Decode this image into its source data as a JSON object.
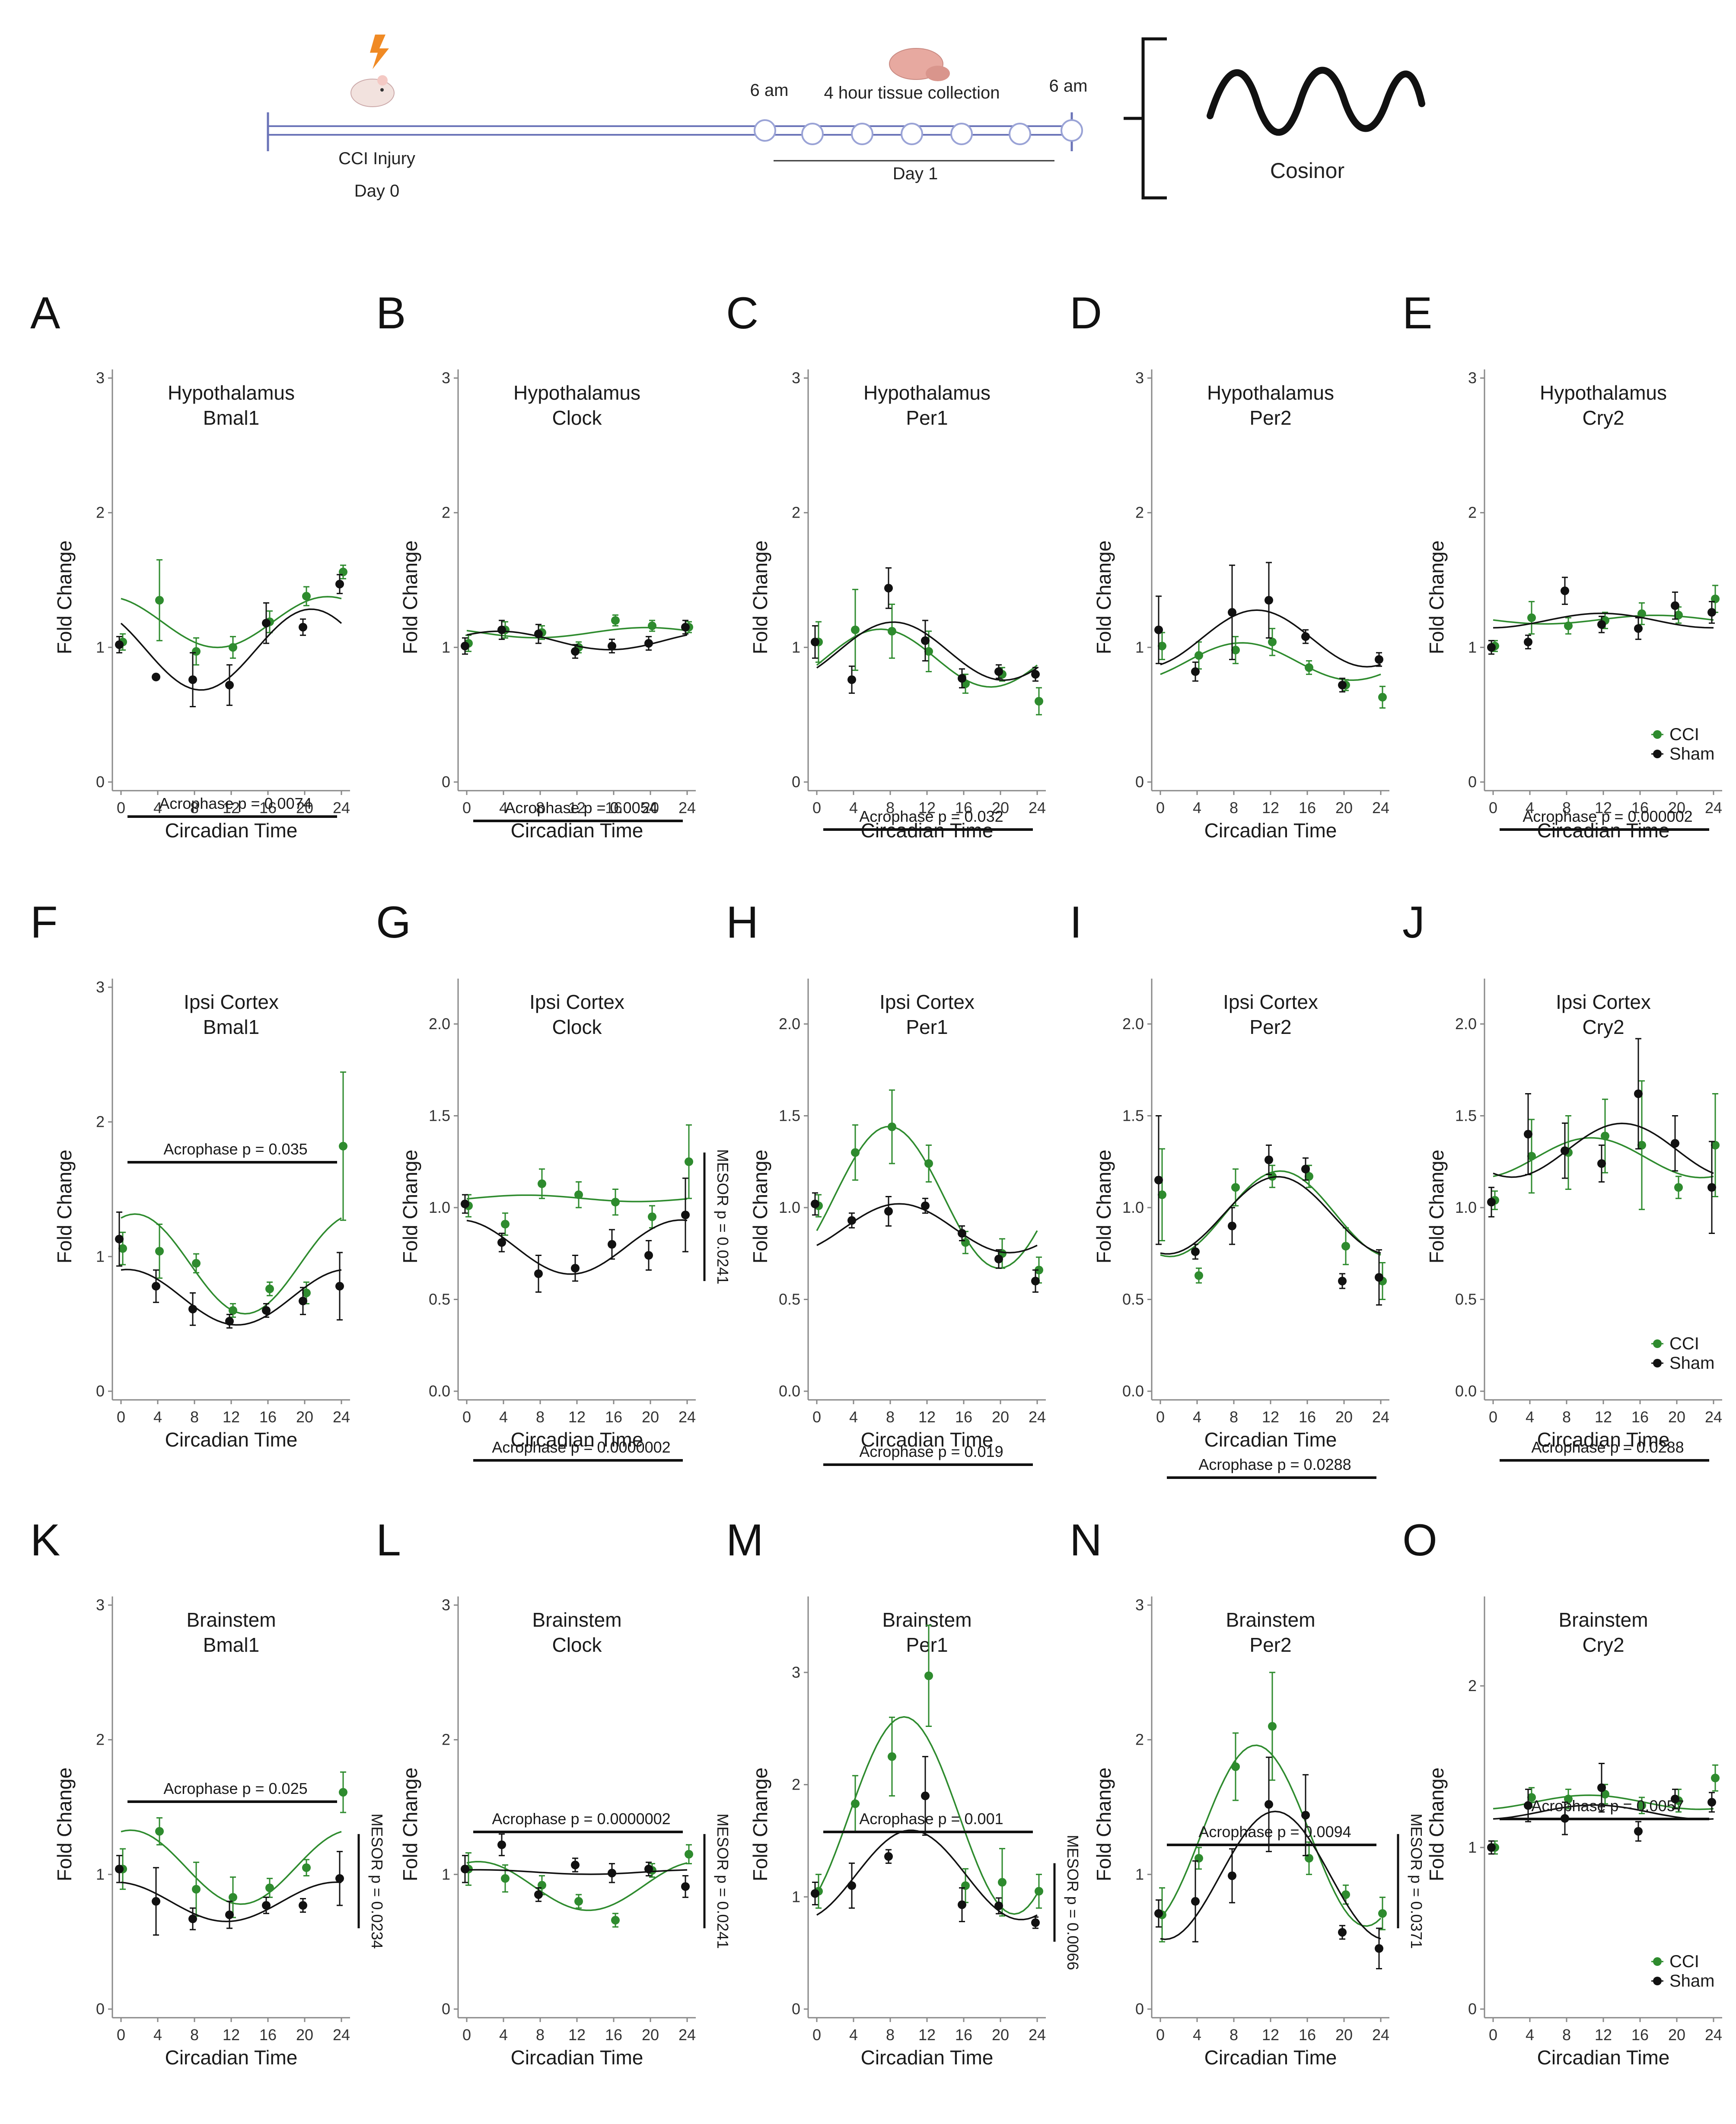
{
  "timeline": {
    "injury_label": "CCI Injury",
    "day0_label": "Day 0",
    "start_time": "6 am",
    "end_time": "6 am",
    "collection_label": "4 hour tissue collection",
    "day1_label": "Day 1",
    "cosinor_label": "Cosinor"
  },
  "colors": {
    "cci": "#2e8b2e",
    "sham": "#111111"
  },
  "axis": {
    "xlabel": "Circadian Time",
    "ylabel": "Fold Change",
    "x_ticks": [
      "0",
      "4",
      "8",
      "12",
      "16",
      "20",
      "24"
    ]
  },
  "legend": {
    "cci": "CCI",
    "sham": "Sham"
  },
  "chart_data": [
    {
      "letter": "A",
      "type": "scatter",
      "title_line1": "Hypothalamus",
      "title_line2": "Bmal1",
      "ylim": [
        0,
        3
      ],
      "y_ticks": [
        "0",
        "1",
        "2",
        "3"
      ],
      "x": [
        0,
        4,
        8,
        12,
        16,
        20,
        24
      ],
      "series": [
        {
          "name": "CCI",
          "values": [
            1.04,
            1.35,
            0.97,
            1.0,
            1.19,
            1.38,
            1.56
          ],
          "errors": [
            0.06,
            0.3,
            0.1,
            0.08,
            0.08,
            0.07,
            0.05
          ]
        },
        {
          "name": "Sham",
          "values": [
            1.02,
            0.78,
            0.76,
            0.72,
            1.18,
            1.15,
            1.47
          ],
          "errors": [
            0.06,
            0.0,
            0.2,
            0.15,
            0.15,
            0.06,
            0.07
          ]
        }
      ],
      "acrophase": "Acrophase p = 0.0074",
      "mesor": ""
    },
    {
      "letter": "B",
      "type": "scatter",
      "title_line1": "Hypothalamus",
      "title_line2": "Clock",
      "ylim": [
        0,
        3
      ],
      "y_ticks": [
        "0",
        "1",
        "2",
        "3"
      ],
      "x": [
        0,
        4,
        8,
        12,
        16,
        20,
        24
      ],
      "series": [
        {
          "name": "CCI",
          "values": [
            1.03,
            1.13,
            1.11,
            1.0,
            1.2,
            1.16,
            1.15
          ],
          "errors": [
            0.06,
            0.06,
            0.05,
            0.04,
            0.04,
            0.04,
            0.04
          ]
        },
        {
          "name": "Sham",
          "values": [
            1.01,
            1.13,
            1.1,
            0.97,
            1.01,
            1.03,
            1.15
          ],
          "errors": [
            0.06,
            0.07,
            0.07,
            0.05,
            0.05,
            0.05,
            0.05
          ]
        }
      ],
      "acrophase": "Acrophase p = 0.0054",
      "mesor": ""
    },
    {
      "letter": "C",
      "type": "scatter",
      "title_line1": "Hypothalamus",
      "title_line2": "Per1",
      "ylim": [
        0,
        3
      ],
      "y_ticks": [
        "0",
        "1",
        "2",
        "3"
      ],
      "x": [
        0,
        4,
        8,
        12,
        16,
        20,
        24
      ],
      "series": [
        {
          "name": "CCI",
          "values": [
            1.04,
            1.13,
            1.12,
            0.97,
            0.73,
            0.8,
            0.6
          ],
          "errors": [
            0.15,
            0.3,
            0.2,
            0.15,
            0.07,
            0.05,
            0.1
          ]
        },
        {
          "name": "Sham",
          "values": [
            1.04,
            0.76,
            1.44,
            1.05,
            0.77,
            0.82,
            0.8
          ],
          "errors": [
            0.12,
            0.1,
            0.15,
            0.15,
            0.07,
            0.05,
            0.05
          ]
        }
      ],
      "acrophase": "Acrophase p = 0.032",
      "mesor": ""
    },
    {
      "letter": "D",
      "type": "scatter",
      "title_line1": "Hypothalamus",
      "title_line2": "Per2",
      "ylim": [
        0,
        3
      ],
      "y_ticks": [
        "0",
        "1",
        "2",
        "3"
      ],
      "x": [
        0,
        4,
        8,
        12,
        16,
        20,
        24
      ],
      "series": [
        {
          "name": "CCI",
          "values": [
            1.01,
            0.94,
            0.98,
            1.04,
            0.85,
            0.72,
            0.63
          ],
          "errors": [
            0.1,
            0.1,
            0.1,
            0.1,
            0.05,
            0.04,
            0.08
          ]
        },
        {
          "name": "Sham",
          "values": [
            1.13,
            0.82,
            1.26,
            1.35,
            1.08,
            0.72,
            0.91
          ],
          "errors": [
            0.25,
            0.07,
            0.35,
            0.28,
            0.05,
            0.05,
            0.05
          ]
        }
      ],
      "acrophase": "",
      "mesor": ""
    },
    {
      "letter": "E",
      "type": "scatter",
      "title_line1": "Hypothalamus",
      "title_line2": "Cry2",
      "ylim": [
        0,
        3
      ],
      "y_ticks": [
        "0",
        "1",
        "2",
        "3"
      ],
      "x": [
        0,
        4,
        8,
        12,
        16,
        20,
        24
      ],
      "series": [
        {
          "name": "CCI",
          "values": [
            1.01,
            1.22,
            1.16,
            1.2,
            1.25,
            1.24,
            1.36
          ],
          "errors": [
            0.04,
            0.12,
            0.06,
            0.06,
            0.08,
            0.06,
            0.1
          ]
        },
        {
          "name": "Sham",
          "values": [
            1.0,
            1.04,
            1.42,
            1.17,
            1.14,
            1.31,
            1.26
          ],
          "errors": [
            0.05,
            0.05,
            0.1,
            0.06,
            0.08,
            0.1,
            0.08
          ]
        }
      ],
      "acrophase": "Acrophase p = 0.000002",
      "mesor": ""
    },
    {
      "letter": "F",
      "type": "scatter",
      "title_line1": "Ipsi Cortex",
      "title_line2": "Bmal1",
      "ylim": [
        0,
        3
      ],
      "y_ticks": [
        "0",
        "1",
        "2",
        "3"
      ],
      "x": [
        0,
        4,
        8,
        12,
        16,
        20,
        24
      ],
      "series": [
        {
          "name": "CCI",
          "values": [
            1.06,
            1.04,
            0.95,
            0.6,
            0.76,
            0.73,
            1.82
          ],
          "errors": [
            0.12,
            0.2,
            0.07,
            0.05,
            0.05,
            0.08,
            0.55
          ]
        },
        {
          "name": "Sham",
          "values": [
            1.13,
            0.78,
            0.61,
            0.52,
            0.6,
            0.67,
            0.78
          ],
          "errors": [
            0.2,
            0.12,
            0.12,
            0.05,
            0.05,
            0.1,
            0.25
          ]
        }
      ],
      "acrophase": "Acrophase p = 0.035",
      "mesor": ""
    },
    {
      "letter": "G",
      "type": "scatter",
      "title_line1": "Ipsi Cortex",
      "title_line2": "Clock",
      "ylim": [
        0,
        2.2
      ],
      "y_ticks": [
        "0.0",
        "0.5",
        "1.0",
        "1.5",
        "2.0"
      ],
      "x": [
        0,
        4,
        8,
        12,
        16,
        20,
        24
      ],
      "series": [
        {
          "name": "CCI",
          "values": [
            1.01,
            0.91,
            1.13,
            1.07,
            1.03,
            0.95,
            1.25
          ],
          "errors": [
            0.06,
            0.06,
            0.08,
            0.07,
            0.07,
            0.06,
            0.2
          ]
        },
        {
          "name": "Sham",
          "values": [
            1.02,
            0.81,
            0.64,
            0.67,
            0.8,
            0.74,
            0.96
          ],
          "errors": [
            0.05,
            0.05,
            0.1,
            0.07,
            0.08,
            0.08,
            0.2
          ]
        }
      ],
      "acrophase": "Acrophase p = 0.0000002",
      "mesor": "MESOR p = 0.0241"
    },
    {
      "letter": "H",
      "type": "scatter",
      "title_line1": "Ipsi Cortex",
      "title_line2": "Per1",
      "ylim": [
        0,
        2.2
      ],
      "y_ticks": [
        "0.0",
        "0.5",
        "1.0",
        "1.5",
        "2.0"
      ],
      "x": [
        0,
        4,
        8,
        12,
        16,
        20,
        24
      ],
      "series": [
        {
          "name": "CCI",
          "values": [
            1.01,
            1.3,
            1.44,
            1.24,
            0.81,
            0.75,
            0.66
          ],
          "errors": [
            0.06,
            0.15,
            0.2,
            0.1,
            0.06,
            0.08,
            0.07
          ]
        },
        {
          "name": "Sham",
          "values": [
            1.02,
            0.93,
            0.98,
            1.01,
            0.86,
            0.72,
            0.6
          ],
          "errors": [
            0.06,
            0.04,
            0.08,
            0.04,
            0.04,
            0.05,
            0.06
          ]
        }
      ],
      "acrophase": "Acrophase p = 0.019",
      "mesor": ""
    },
    {
      "letter": "I",
      "type": "scatter",
      "title_line1": "Ipsi Cortex",
      "title_line2": "Per2",
      "ylim": [
        0,
        2.2
      ],
      "y_ticks": [
        "0.0",
        "0.5",
        "1.0",
        "1.5",
        "2.0"
      ],
      "x": [
        0,
        4,
        8,
        12,
        16,
        20,
        24
      ],
      "series": [
        {
          "name": "CCI",
          "values": [
            1.07,
            0.63,
            1.11,
            1.17,
            1.17,
            0.79,
            0.6
          ],
          "errors": [
            0.25,
            0.04,
            0.1,
            0.06,
            0.06,
            0.1,
            0.1
          ]
        },
        {
          "name": "Sham",
          "values": [
            1.15,
            0.76,
            0.9,
            1.26,
            1.21,
            0.6,
            0.62
          ],
          "errors": [
            0.35,
            0.04,
            0.1,
            0.08,
            0.06,
            0.04,
            0.15
          ]
        }
      ],
      "acrophase": "Acrophase p = 0.0288",
      "mesor": ""
    },
    {
      "letter": "J",
      "type": "scatter",
      "title_line1": "Ipsi Cortex",
      "title_line2": "Cry2",
      "ylim": [
        0,
        2.2
      ],
      "y_ticks": [
        "0.0",
        "0.5",
        "1.0",
        "1.5",
        "2.0"
      ],
      "x": [
        0,
        4,
        8,
        12,
        16,
        20,
        24
      ],
      "series": [
        {
          "name": "CCI",
          "values": [
            1.04,
            1.28,
            1.3,
            1.39,
            1.34,
            1.11,
            1.34
          ],
          "errors": [
            0.05,
            0.2,
            0.2,
            0.2,
            0.35,
            0.06,
            0.28
          ]
        },
        {
          "name": "Sham",
          "values": [
            1.03,
            1.4,
            1.31,
            1.24,
            1.62,
            1.35,
            1.11
          ],
          "errors": [
            0.08,
            0.22,
            0.15,
            0.1,
            0.3,
            0.15,
            0.25
          ]
        }
      ],
      "acrophase": "Acrophase p = 0.0288",
      "mesor": ""
    },
    {
      "letter": "K",
      "type": "scatter",
      "title_line1": "Brainstem",
      "title_line2": "Bmal1",
      "ylim": [
        0,
        3
      ],
      "y_ticks": [
        "0",
        "1",
        "2",
        "3"
      ],
      "x": [
        0,
        4,
        8,
        12,
        16,
        20,
        24
      ],
      "series": [
        {
          "name": "CCI",
          "values": [
            1.04,
            1.32,
            0.89,
            0.83,
            0.9,
            1.05,
            1.61
          ],
          "errors": [
            0.15,
            0.1,
            0.2,
            0.15,
            0.07,
            0.06,
            0.15
          ]
        },
        {
          "name": "Sham",
          "values": [
            1.04,
            0.8,
            0.67,
            0.7,
            0.77,
            0.77,
            0.97
          ],
          "errors": [
            0.1,
            0.25,
            0.08,
            0.1,
            0.06,
            0.05,
            0.2
          ]
        }
      ],
      "acrophase": "Acrophase p = 0.025",
      "mesor": "MESOR p = 0.0234"
    },
    {
      "letter": "L",
      "type": "scatter",
      "title_line1": "Brainstem",
      "title_line2": "Clock",
      "ylim": [
        0,
        3
      ],
      "y_ticks": [
        "0",
        "1",
        "2",
        "3"
      ],
      "x": [
        0,
        4,
        8,
        12,
        16,
        20,
        24
      ],
      "series": [
        {
          "name": "CCI",
          "values": [
            1.04,
            0.97,
            0.92,
            0.8,
            0.66,
            1.03,
            1.15
          ],
          "errors": [
            0.12,
            0.1,
            0.07,
            0.05,
            0.05,
            0.05,
            0.07
          ]
        },
        {
          "name": "Sham",
          "values": [
            1.04,
            1.22,
            0.85,
            1.07,
            1.01,
            1.04,
            0.91
          ],
          "errors": [
            0.1,
            0.08,
            0.05,
            0.05,
            0.07,
            0.05,
            0.08
          ]
        }
      ],
      "acrophase": "Acrophase p = 0.0000002",
      "mesor": "MESOR p = 0.0241"
    },
    {
      "letter": "M",
      "type": "scatter",
      "title_line1": "Brainstem",
      "title_line2": "Per1",
      "ylim": [
        0,
        3.6
      ],
      "y_ticks": [
        "0",
        "1",
        "2",
        "3"
      ],
      "x": [
        0,
        4,
        8,
        12,
        16,
        20,
        24
      ],
      "series": [
        {
          "name": "CCI",
          "values": [
            1.05,
            1.83,
            2.25,
            2.97,
            1.1,
            1.13,
            1.05
          ],
          "errors": [
            0.15,
            0.25,
            0.35,
            0.45,
            0.15,
            0.3,
            0.15
          ]
        },
        {
          "name": "Sham",
          "values": [
            1.03,
            1.1,
            1.36,
            1.9,
            0.93,
            0.92,
            0.77
          ],
          "errors": [
            0.1,
            0.2,
            0.06,
            0.35,
            0.15,
            0.07,
            0.05
          ]
        }
      ],
      "acrophase": "Acrophase p = 0.001",
      "mesor": "MESOR p = 0.0066"
    },
    {
      "letter": "N",
      "type": "scatter",
      "title_line1": "Brainstem",
      "title_line2": "Per2",
      "ylim": [
        0,
        3
      ],
      "y_ticks": [
        "0",
        "1",
        "2",
        "3"
      ],
      "x": [
        0,
        4,
        8,
        12,
        16,
        20,
        24
      ],
      "series": [
        {
          "name": "CCI",
          "values": [
            0.7,
            1.12,
            1.8,
            2.1,
            1.12,
            0.85,
            0.71
          ],
          "errors": [
            0.2,
            0.08,
            0.25,
            0.4,
            0.12,
            0.07,
            0.12
          ]
        },
        {
          "name": "Sham",
          "values": [
            0.71,
            0.8,
            0.99,
            1.52,
            1.44,
            0.57,
            0.45
          ],
          "errors": [
            0.1,
            0.3,
            0.2,
            0.35,
            0.3,
            0.05,
            0.15
          ]
        }
      ],
      "acrophase": "Acrophase p = 0.0094",
      "mesor": "MESOR p = 0.0371"
    },
    {
      "letter": "O",
      "type": "scatter",
      "title_line1": "Brainstem",
      "title_line2": "Cry2",
      "ylim": [
        0,
        2.5
      ],
      "y_ticks": [
        "0",
        "1",
        "2"
      ],
      "x": [
        0,
        4,
        8,
        12,
        16,
        20,
        24
      ],
      "series": [
        {
          "name": "CCI",
          "values": [
            1.0,
            1.31,
            1.3,
            1.33,
            1.26,
            1.29,
            1.43
          ],
          "errors": [
            0.04,
            0.06,
            0.06,
            0.06,
            0.05,
            0.07,
            0.08
          ]
        },
        {
          "name": "Sham",
          "values": [
            1.0,
            1.26,
            1.18,
            1.37,
            1.1,
            1.3,
            1.28
          ],
          "errors": [
            0.04,
            0.1,
            0.1,
            0.15,
            0.06,
            0.06,
            0.06
          ]
        }
      ],
      "acrophase": "Acrophase p = 0.0057",
      "mesor": ""
    }
  ]
}
